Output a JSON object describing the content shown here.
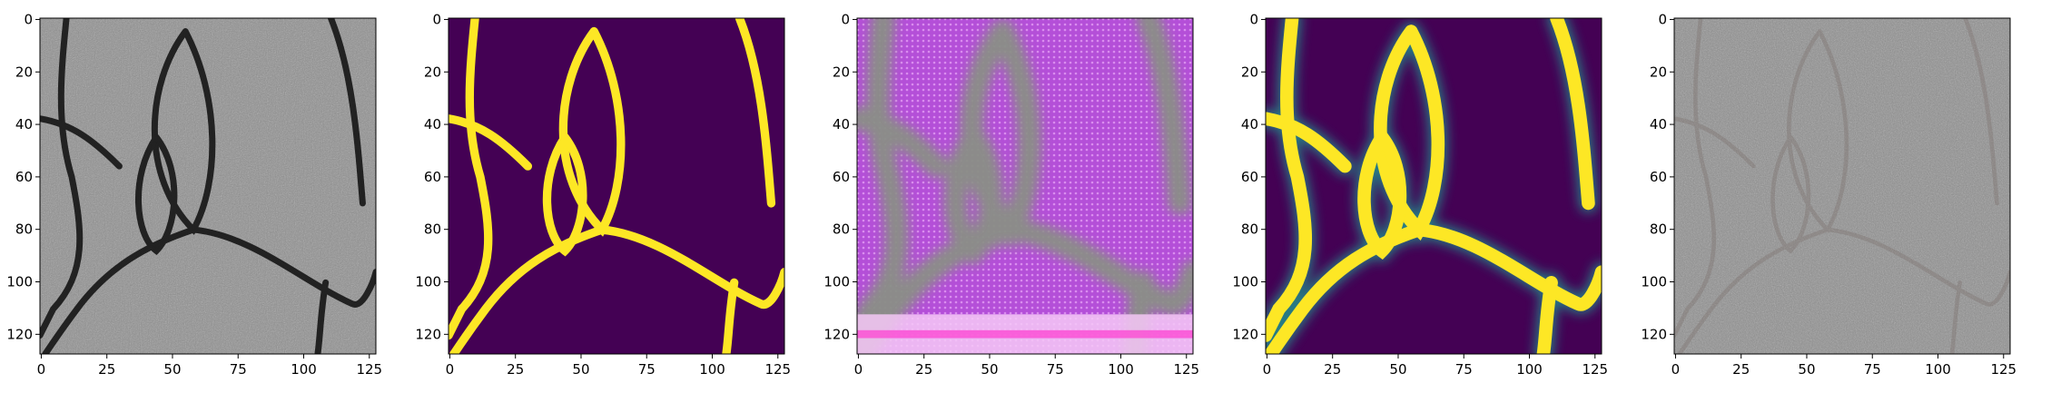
{
  "panels": [
    {
      "id": "photo",
      "style": "asphalt",
      "xticks": [
        "0",
        "25",
        "50",
        "75",
        "100",
        "125"
      ],
      "yticks": [
        "0",
        "20",
        "40",
        "60",
        "80",
        "100",
        "120"
      ]
    },
    {
      "id": "mask",
      "style": "binary-mask",
      "xticks": [
        "0",
        "25",
        "50",
        "75",
        "100",
        "125"
      ],
      "yticks": [
        "0",
        "20",
        "40",
        "60",
        "80",
        "100",
        "120"
      ]
    },
    {
      "id": "feature",
      "style": "feature-map",
      "xticks": [
        "0",
        "25",
        "50",
        "75",
        "100",
        "125"
      ],
      "yticks": [
        "0",
        "20",
        "40",
        "60",
        "80",
        "100",
        "120"
      ]
    },
    {
      "id": "prediction",
      "style": "smooth-mask",
      "xticks": [
        "0",
        "25",
        "50",
        "75",
        "100",
        "125"
      ],
      "yticks": [
        "0",
        "20",
        "40",
        "60",
        "80",
        "100",
        "120"
      ]
    },
    {
      "id": "overlay",
      "style": "asphalt-faint",
      "xticks": [
        "0",
        "25",
        "50",
        "75",
        "100",
        "125"
      ],
      "yticks": [
        "0",
        "20",
        "40",
        "60",
        "80",
        "100",
        "120"
      ]
    }
  ],
  "colors": {
    "background": "#440154",
    "crack": "#fde725",
    "asphalt": "#8f8f8f",
    "crack_dark": "#151515",
    "feature_fill": "#b44fd8",
    "feature_crack": "#8a8f86",
    "axis": "#000000"
  }
}
